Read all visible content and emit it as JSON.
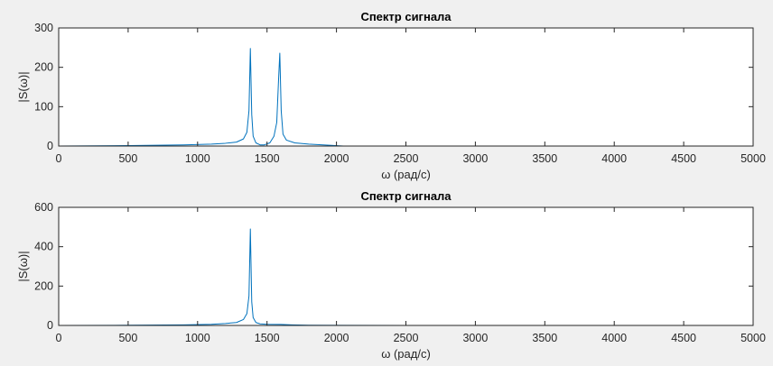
{
  "figure": {
    "background": "#f0f0f0",
    "plot_background": "#ffffff",
    "axis_color": "#262626"
  },
  "chart_data": [
    {
      "type": "line",
      "title": "Спектр сигнала",
      "xlabel": "ω (рад/с)",
      "ylabel": "|S(ω)|",
      "xlim": [
        0,
        5000
      ],
      "ylim": [
        0,
        300
      ],
      "xticks": [
        0,
        500,
        1000,
        1500,
        2000,
        2500,
        3000,
        3500,
        4000,
        4500,
        5000
      ],
      "yticks": [
        0,
        100,
        200,
        300
      ],
      "grid": false,
      "series": [
        {
          "color": "#0072bd",
          "x": [
            0,
            500,
            900,
            1100,
            1200,
            1280,
            1330,
            1355,
            1370,
            1380,
            1390,
            1400,
            1420,
            1450,
            1480,
            1520,
            1550,
            1570,
            1582,
            1592,
            1602,
            1615,
            1640,
            1700,
            1800,
            1950,
            2050,
            2500,
            3500,
            5000
          ],
          "y": [
            0,
            1,
            3,
            5,
            7,
            10,
            18,
            35,
            90,
            248,
            80,
            25,
            8,
            3,
            3,
            8,
            25,
            60,
            160,
            236,
            90,
            30,
            15,
            8,
            5,
            2,
            0,
            0,
            0,
            0
          ]
        }
      ]
    },
    {
      "type": "line",
      "title": "Спектр сигнала",
      "xlabel": "ω (рад/с)",
      "ylabel": "|S(ω)|",
      "xlim": [
        0,
        5000
      ],
      "ylim": [
        0,
        600
      ],
      "xticks": [
        0,
        500,
        1000,
        1500,
        2000,
        2500,
        3000,
        3500,
        4000,
        4500,
        5000
      ],
      "yticks": [
        0,
        200,
        400,
        600
      ],
      "grid": false,
      "series": [
        {
          "color": "#0072bd",
          "x": [
            0,
            500,
            900,
            1100,
            1200,
            1280,
            1330,
            1355,
            1370,
            1380,
            1390,
            1400,
            1420,
            1450,
            1500,
            1600,
            1680,
            1800,
            2500,
            5000
          ],
          "y": [
            0,
            1,
            3,
            6,
            10,
            15,
            30,
            60,
            150,
            490,
            120,
            40,
            15,
            8,
            6,
            5,
            3,
            1,
            0,
            0
          ]
        }
      ]
    }
  ]
}
